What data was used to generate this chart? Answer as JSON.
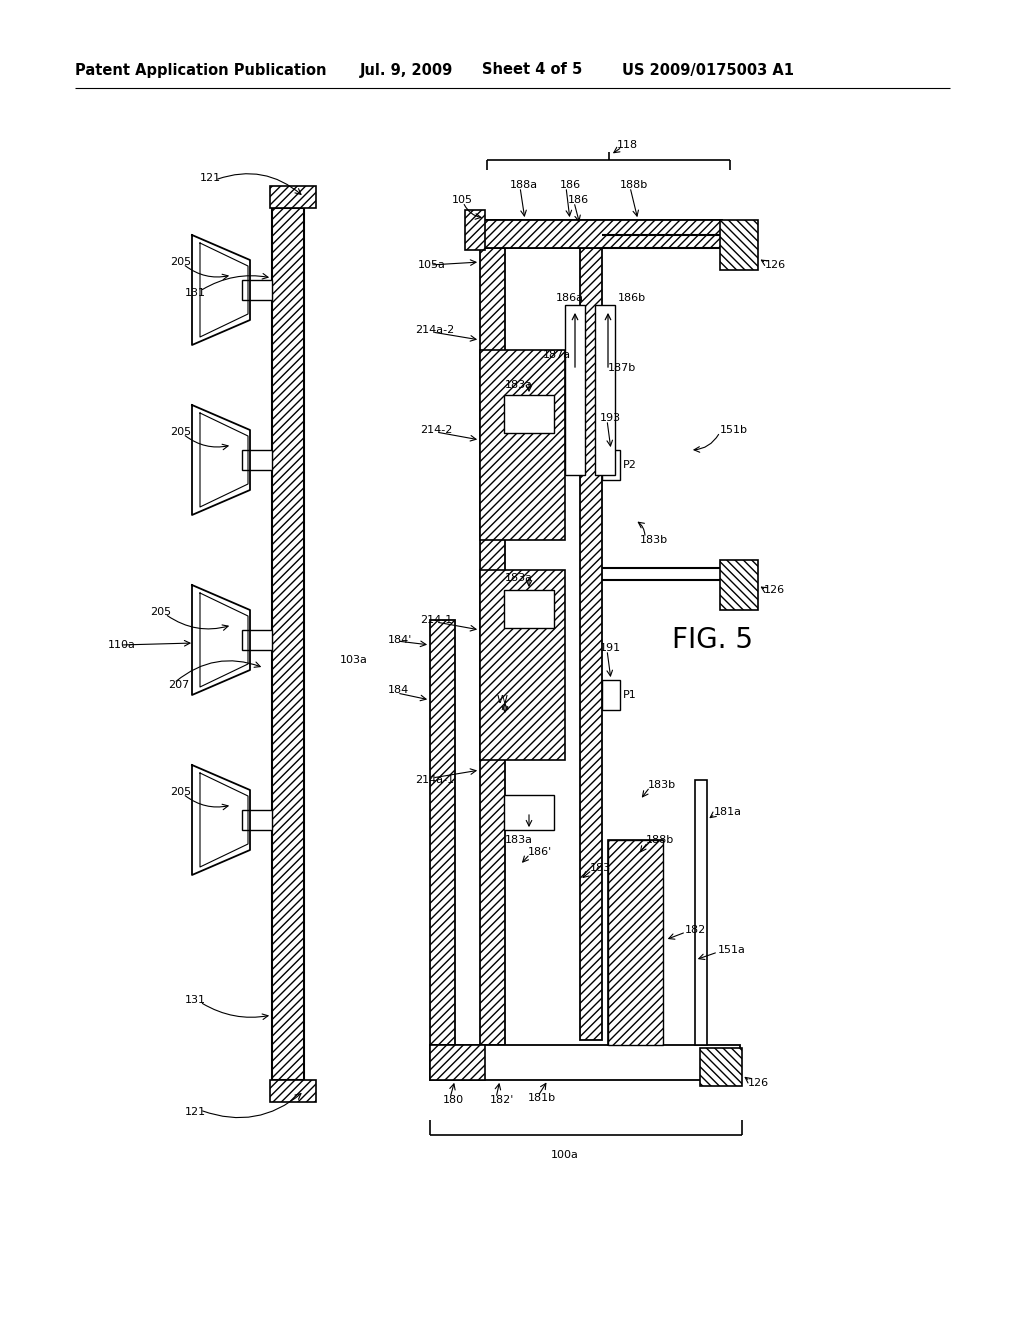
{
  "bg_color": "#ffffff",
  "header_text": "Patent Application Publication",
  "header_date": "Jul. 9, 2009",
  "header_sheet": "Sheet 4 of 5",
  "header_patent": "US 2009/0175003 A1",
  "fig_label": "FIG. 5",
  "label_fontsize": 8.0,
  "header_fontsize": 10.5,
  "fig5_fontsize": 20
}
